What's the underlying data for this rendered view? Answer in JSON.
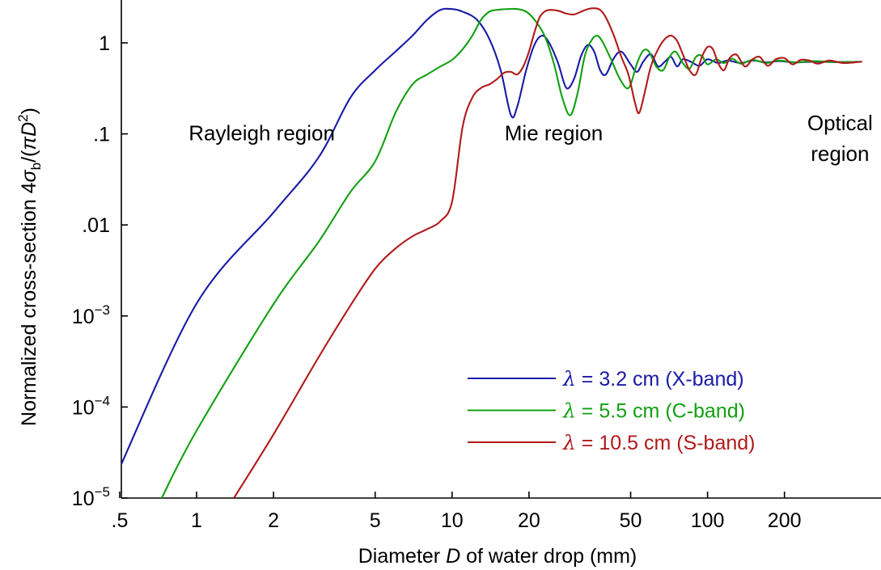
{
  "chart_data": {
    "type": "line",
    "xscale": "log",
    "yscale": "log",
    "xlim": [
      0.5,
      400
    ],
    "ylim": [
      1e-05,
      2.5
    ],
    "xlabel": {
      "pre": "Diameter ",
      "italic": "D",
      "post": " of water drop (mm)"
    },
    "ylabel": {
      "pre": "Normalized cross-section 4",
      "sigma": "σ",
      "sub": "b",
      "mid": "/(",
      "pi": "π",
      "d": "D",
      "sup": "2",
      "post": ")"
    },
    "x_ticks": [
      {
        "value": 0.5,
        "label": ".5"
      },
      {
        "value": 1,
        "label": "1"
      },
      {
        "value": 2,
        "label": "2"
      },
      {
        "value": 5,
        "label": "5"
      },
      {
        "value": 10,
        "label": "10"
      },
      {
        "value": 20,
        "label": "20"
      },
      {
        "value": 50,
        "label": "50"
      },
      {
        "value": 100,
        "label": "100"
      },
      {
        "value": 200,
        "label": "200"
      }
    ],
    "y_ticks": [
      {
        "value": 1e-05,
        "base": "10",
        "exp": "−5"
      },
      {
        "value": 0.0001,
        "base": "10",
        "exp": "−4"
      },
      {
        "value": 0.001,
        "base": "10",
        "exp": "−3"
      },
      {
        "value": 0.01,
        "base": ".01",
        "exp": ""
      },
      {
        "value": 0.1,
        "base": ".1",
        "exp": ""
      },
      {
        "value": 1,
        "base": "1",
        "exp": ""
      }
    ],
    "regions": [
      {
        "lines": [
          "Rayleigh region"
        ],
        "x": 1.8,
        "y": 0.085,
        "anchor": "middle"
      },
      {
        "lines": [
          "Mie region"
        ],
        "x": 25,
        "y": 0.085,
        "anchor": "middle"
      },
      {
        "lines": [
          "Optical",
          "region"
        ],
        "x": 330,
        "y": 0.11,
        "anchor": "middle"
      }
    ],
    "legend_position": "bottom-right",
    "series": [
      {
        "lambda": "λ",
        "name": " = 3.2 cm (X-band)",
        "color": "#1a1aa6",
        "points": [
          [
            0.5,
            2.15e-05
          ],
          [
            1,
            0.00137
          ],
          [
            2,
            0.0137
          ],
          [
            3,
            0.055
          ],
          [
            4,
            0.25
          ],
          [
            5,
            0.5
          ],
          [
            6,
            0.8
          ],
          [
            7,
            1.2
          ],
          [
            8,
            1.8
          ],
          [
            9,
            2.3
          ],
          [
            10,
            2.35
          ],
          [
            11,
            2.2
          ],
          [
            12.5,
            1.8
          ],
          [
            14,
            1.1
          ],
          [
            15.5,
            0.5
          ],
          [
            17,
            0.16
          ],
          [
            18,
            0.2
          ],
          [
            19.5,
            0.5
          ],
          [
            21,
            0.95
          ],
          [
            22.5,
            1.2
          ],
          [
            24,
            1.0
          ],
          [
            26,
            0.6
          ],
          [
            28,
            0.32
          ],
          [
            30,
            0.4
          ],
          [
            32,
            0.72
          ],
          [
            34,
            0.95
          ],
          [
            36,
            0.8
          ],
          [
            38,
            0.5
          ],
          [
            40,
            0.45
          ],
          [
            43,
            0.68
          ],
          [
            46,
            0.8
          ],
          [
            50,
            0.58
          ],
          [
            53,
            0.48
          ],
          [
            56,
            0.62
          ],
          [
            60,
            0.75
          ],
          [
            64,
            0.55
          ],
          [
            68,
            0.62
          ],
          [
            72,
            0.7
          ],
          [
            76,
            0.55
          ],
          [
            80,
            0.66
          ],
          [
            86,
            0.62
          ],
          [
            93,
            0.56
          ],
          [
            100,
            0.66
          ],
          [
            110,
            0.6
          ],
          [
            120,
            0.64
          ],
          [
            135,
            0.6
          ],
          [
            150,
            0.64
          ],
          [
            170,
            0.61
          ],
          [
            190,
            0.63
          ],
          [
            220,
            0.61
          ],
          [
            260,
            0.62
          ],
          [
            320,
            0.615
          ],
          [
            400,
            0.62
          ]
        ]
      },
      {
        "lambda": "λ",
        "name": " = 5.5 cm (C-band)",
        "color": "#12a012",
        "points": [
          [
            0.73,
            1e-05
          ],
          [
            1,
            5.5e-05
          ],
          [
            2,
            0.00135
          ],
          [
            3,
            0.0065
          ],
          [
            4,
            0.023
          ],
          [
            5,
            0.05
          ],
          [
            6,
            0.17
          ],
          [
            7,
            0.35
          ],
          [
            8,
            0.45
          ],
          [
            9,
            0.55
          ],
          [
            10,
            0.65
          ],
          [
            11,
            0.85
          ],
          [
            12,
            1.2
          ],
          [
            13,
            1.8
          ],
          [
            14,
            2.2
          ],
          [
            15,
            2.3
          ],
          [
            16.5,
            2.35
          ],
          [
            18,
            2.35
          ],
          [
            19.5,
            2.2
          ],
          [
            21,
            1.8
          ],
          [
            23,
            1.2
          ],
          [
            25,
            0.6
          ],
          [
            27,
            0.25
          ],
          [
            29,
            0.16
          ],
          [
            31,
            0.28
          ],
          [
            33,
            0.7
          ],
          [
            35,
            1.05
          ],
          [
            37,
            1.2
          ],
          [
            39,
            1.0
          ],
          [
            42,
            0.65
          ],
          [
            45,
            0.42
          ],
          [
            48,
            0.32
          ],
          [
            50,
            0.35
          ],
          [
            53,
            0.6
          ],
          [
            56,
            0.82
          ],
          [
            59,
            0.8
          ],
          [
            63,
            0.55
          ],
          [
            67,
            0.5
          ],
          [
            71,
            0.7
          ],
          [
            75,
            0.8
          ],
          [
            80,
            0.6
          ],
          [
            85,
            0.52
          ],
          [
            90,
            0.7
          ],
          [
            95,
            0.72
          ],
          [
            100,
            0.58
          ],
          [
            108,
            0.66
          ],
          [
            116,
            0.6
          ],
          [
            125,
            0.67
          ],
          [
            135,
            0.59
          ],
          [
            150,
            0.65
          ],
          [
            170,
            0.6
          ],
          [
            190,
            0.64
          ],
          [
            220,
            0.61
          ],
          [
            260,
            0.63
          ],
          [
            320,
            0.615
          ],
          [
            400,
            0.62
          ]
        ]
      },
      {
        "lambda": "λ",
        "name": " = 10.5 cm (S-band)",
        "color": "#b01a1a",
        "points": [
          [
            1.4,
            1e-05
          ],
          [
            2,
            5e-05
          ],
          [
            3,
            0.00035
          ],
          [
            4,
            0.0013
          ],
          [
            5,
            0.0033
          ],
          [
            6,
            0.0055
          ],
          [
            7,
            0.0075
          ],
          [
            8,
            0.009
          ],
          [
            9,
            0.011
          ],
          [
            10,
            0.018
          ],
          [
            11,
            0.12
          ],
          [
            12,
            0.25
          ],
          [
            13,
            0.32
          ],
          [
            14,
            0.35
          ],
          [
            15,
            0.4
          ],
          [
            16,
            0.47
          ],
          [
            17,
            0.48
          ],
          [
            18,
            0.45
          ],
          [
            19,
            0.55
          ],
          [
            20,
            0.8
          ],
          [
            21,
            1.3
          ],
          [
            22,
            1.9
          ],
          [
            23,
            2.2
          ],
          [
            24,
            2.3
          ],
          [
            26,
            2.25
          ],
          [
            28,
            2.1
          ],
          [
            30,
            2.05
          ],
          [
            32,
            2.2
          ],
          [
            34,
            2.35
          ],
          [
            36,
            2.4
          ],
          [
            38,
            2.3
          ],
          [
            40,
            1.9
          ],
          [
            43,
            1.2
          ],
          [
            46,
            0.7
          ],
          [
            49,
            0.45
          ],
          [
            52,
            0.22
          ],
          [
            54,
            0.17
          ],
          [
            57,
            0.3
          ],
          [
            60,
            0.55
          ],
          [
            64,
            0.85
          ],
          [
            68,
            1.1
          ],
          [
            72,
            1.2
          ],
          [
            76,
            1.05
          ],
          [
            80,
            0.75
          ],
          [
            85,
            0.5
          ],
          [
            90,
            0.45
          ],
          [
            95,
            0.7
          ],
          [
            100,
            0.9
          ],
          [
            105,
            0.85
          ],
          [
            110,
            0.6
          ],
          [
            116,
            0.5
          ],
          [
            122,
            0.68
          ],
          [
            130,
            0.74
          ],
          [
            140,
            0.55
          ],
          [
            150,
            0.66
          ],
          [
            160,
            0.7
          ],
          [
            172,
            0.56
          ],
          [
            185,
            0.66
          ],
          [
            200,
            0.68
          ],
          [
            215,
            0.58
          ],
          [
            232,
            0.65
          ],
          [
            250,
            0.64
          ],
          [
            270,
            0.59
          ],
          [
            300,
            0.64
          ],
          [
            340,
            0.6
          ],
          [
            400,
            0.62
          ]
        ]
      }
    ]
  }
}
